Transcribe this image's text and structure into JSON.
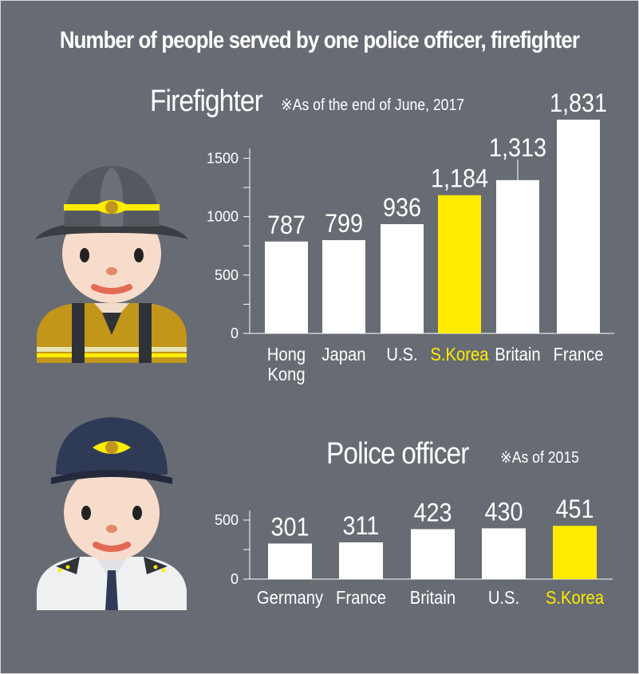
{
  "title": "Number of people served by one police officer, firefighter",
  "colors": {
    "background": "#676b73",
    "bar": "#ffffff",
    "highlight": "#ffec00",
    "axis": "#ffffff"
  },
  "sections": {
    "firefighter": {
      "title": "Firefighter",
      "note": "※As of the end of June, 2017"
    },
    "police": {
      "title": "Police officer",
      "note": "※As of 2015"
    }
  },
  "icons": {
    "firefighter": "firefighter-avatar-icon",
    "police": "police-officer-avatar-icon"
  },
  "chart_data": [
    {
      "type": "bar",
      "title": "Firefighter",
      "note": "※As of the end of June, 2017",
      "categories": [
        "Hong Kong",
        "Japan",
        "U.S.",
        "S.Korea",
        "Britain",
        "France"
      ],
      "values": [
        787,
        799,
        936,
        1184,
        1313,
        1831
      ],
      "value_labels": [
        "787",
        "799",
        "936",
        "1,184",
        "1,313",
        "1,831"
      ],
      "highlight": "S.Korea",
      "yticks": [
        0,
        500,
        1000,
        1500
      ],
      "ytick_labels": [
        "0",
        "500",
        "1000",
        "1500"
      ],
      "ylim": [
        0,
        1831
      ],
      "grid": false,
      "xlabel": "",
      "ylabel": ""
    },
    {
      "type": "bar",
      "title": "Police officer",
      "note": "※As of 2015",
      "categories": [
        "Germany",
        "France",
        "Britain",
        "U.S.",
        "S.Korea"
      ],
      "values": [
        301,
        311,
        423,
        430,
        451
      ],
      "value_labels": [
        "301",
        "311",
        "423",
        "430",
        "451"
      ],
      "highlight": "S.Korea",
      "yticks": [
        0,
        500
      ],
      "ytick_labels": [
        "0",
        "500"
      ],
      "ylim": [
        0,
        500
      ],
      "grid": false,
      "xlabel": "",
      "ylabel": ""
    }
  ]
}
